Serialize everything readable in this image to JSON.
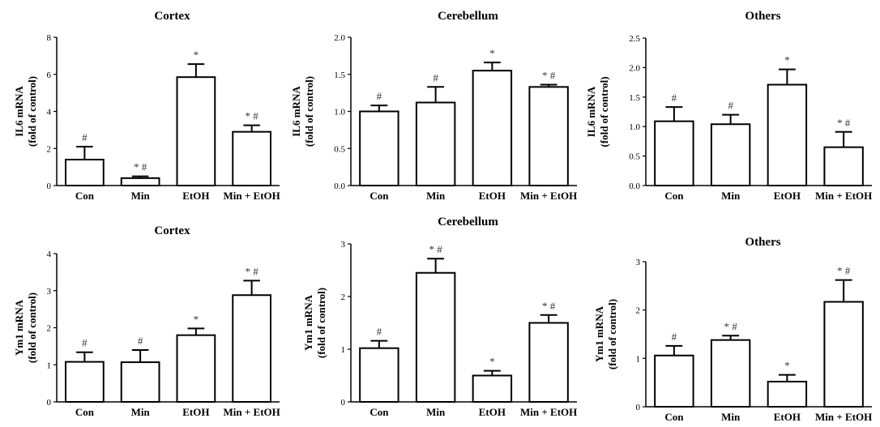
{
  "chart_data": [
    {
      "type": "bar",
      "title": "Cortex",
      "ylabel": [
        "IL6 mRNA",
        "(fold of control)"
      ],
      "categories": [
        "Con",
        "Min",
        "EtOH",
        "Min + EtOH"
      ],
      "values": [
        1.4,
        0.4,
        5.85,
        2.9
      ],
      "errors": [
        0.7,
        0.1,
        0.7,
        0.35
      ],
      "annotations": [
        "#",
        "* #",
        "*",
        "* #"
      ],
      "ylim": [
        0,
        8
      ],
      "yticks": [
        "0",
        "2",
        "4",
        "6",
        "8"
      ],
      "colors": {
        "bar_fill": "#ffffff",
        "bar_stroke": "#000000"
      }
    },
    {
      "type": "bar",
      "title": "Cerebellum",
      "ylabel": [
        "IL6 mRNA",
        "(fold of control)"
      ],
      "categories": [
        "Con",
        "Min",
        "EtOH",
        "Min + EtOH"
      ],
      "values": [
        1.0,
        1.12,
        1.55,
        1.33
      ],
      "errors": [
        0.08,
        0.21,
        0.11,
        0.03
      ],
      "annotations": [
        "#",
        "#",
        "*",
        "* #"
      ],
      "ylim": [
        0,
        2.0
      ],
      "yticks": [
        "0.0",
        "0.5",
        "1.0",
        "1.5",
        "2.0"
      ],
      "colors": {
        "bar_fill": "#ffffff",
        "bar_stroke": "#000000"
      }
    },
    {
      "type": "bar",
      "title": "Others",
      "ylabel": [
        "IL6 mRNA",
        "(fold of control)"
      ],
      "categories": [
        "Con",
        "Min",
        "EtOH",
        "Min + EtOH"
      ],
      "values": [
        1.09,
        1.04,
        1.71,
        0.65
      ],
      "errors": [
        0.24,
        0.16,
        0.26,
        0.26
      ],
      "annotations": [
        "#",
        "#",
        "*",
        "* #"
      ],
      "ylim": [
        0,
        2.5
      ],
      "yticks": [
        "0.0",
        "0.5",
        "1.0",
        "1.5",
        "2.0",
        "2.5"
      ],
      "colors": {
        "bar_fill": "#ffffff",
        "bar_stroke": "#000000"
      }
    },
    {
      "type": "bar",
      "title": "Cortex",
      "ylabel": [
        "Ym1 mRNA",
        "(fold of control)"
      ],
      "categories": [
        "Con",
        "Min",
        "EtOH",
        "Min + EtOH"
      ],
      "values": [
        1.08,
        1.07,
        1.8,
        2.88
      ],
      "errors": [
        0.26,
        0.33,
        0.18,
        0.39
      ],
      "annotations": [
        "#",
        "#",
        "*",
        "* #"
      ],
      "ylim": [
        0,
        4
      ],
      "yticks": [
        "0",
        "1",
        "2",
        "3",
        "4"
      ],
      "colors": {
        "bar_fill": "#ffffff",
        "bar_stroke": "#000000"
      }
    },
    {
      "type": "bar",
      "title": "Cerebellum",
      "ylabel": [
        "Ym1 mRNA",
        "(fold of control)"
      ],
      "categories": [
        "Con",
        "Min",
        "EtOH",
        "Min + EtOH"
      ],
      "values": [
        1.02,
        2.45,
        0.5,
        1.5
      ],
      "errors": [
        0.14,
        0.27,
        0.09,
        0.15
      ],
      "annotations": [
        "#",
        "* #",
        "*",
        "* #"
      ],
      "ylim": [
        0,
        3
      ],
      "yticks": [
        "0",
        "1",
        "2",
        "3"
      ],
      "colors": {
        "bar_fill": "#ffffff",
        "bar_stroke": "#000000"
      }
    },
    {
      "type": "bar",
      "title": "Others",
      "ylabel": [
        "Ym1 mRNA",
        "(fold of control)"
      ],
      "categories": [
        "Con",
        "Min",
        "EtOH",
        "Min + EtOH"
      ],
      "values": [
        1.06,
        1.38,
        0.52,
        2.17
      ],
      "errors": [
        0.2,
        0.09,
        0.14,
        0.45
      ],
      "annotations": [
        "#",
        "* #",
        "*",
        "* #"
      ],
      "ylim": [
        0,
        3
      ],
      "yticks": [
        "0",
        "1",
        "2",
        "3"
      ],
      "colors": {
        "bar_fill": "#ffffff",
        "bar_stroke": "#000000"
      }
    }
  ]
}
